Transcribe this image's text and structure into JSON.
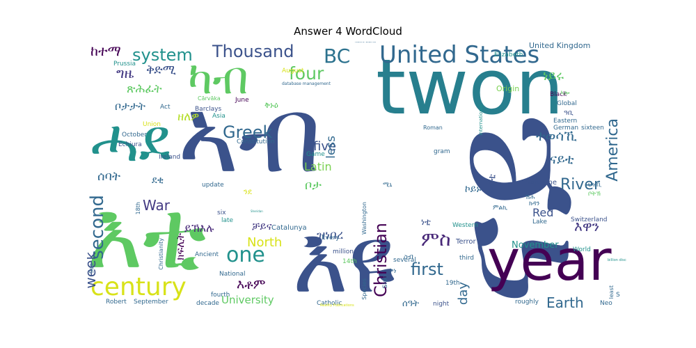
{
  "chart_data": {
    "type": "wordcloud",
    "title": "Answer 4 WordCloud",
    "words": [
      {
        "text": "twon",
        "weight": 100,
        "color": "#277f8e"
      },
      {
        "text": "ናይ",
        "weight": 100,
        "color": "#3b528b"
      },
      {
        "text": "እዩ",
        "weight": 85,
        "color": "#3b528b"
      },
      {
        "text": "ኣብ",
        "weight": 75,
        "color": "#3b528b"
      },
      {
        "text": "year",
        "weight": 60,
        "color": "#440154"
      },
      {
        "text": "እቲ",
        "weight": 80,
        "color": "#5ec962"
      },
      {
        "text": "ሓደ",
        "weight": 50,
        "color": "#21918c"
      },
      {
        "text": "ካብ",
        "weight": 50,
        "color": "#5ec962"
      },
      {
        "text": "century",
        "weight": 30,
        "color": "#d8e219"
      },
      {
        "text": "United States",
        "weight": 28,
        "color": "#31688e"
      },
      {
        "text": "second",
        "weight": 26,
        "color": "#31688e"
      },
      {
        "text": "Thousand",
        "weight": 24,
        "color": "#3b528b"
      },
      {
        "text": "one",
        "weight": 26,
        "color": "#21918c"
      },
      {
        "text": "four",
        "weight": 22,
        "color": "#5ec962"
      },
      {
        "text": "BC",
        "weight": 24,
        "color": "#2c728e"
      },
      {
        "text": "system",
        "weight": 20,
        "color": "#21918c"
      },
      {
        "text": "Greek",
        "weight": 20,
        "color": "#31688e"
      },
      {
        "text": "Christian",
        "weight": 20,
        "color": "#440154"
      },
      {
        "text": "America",
        "weight": 20,
        "color": "#31688e"
      },
      {
        "text": "River",
        "weight": 18,
        "color": "#31688e"
      },
      {
        "text": "first",
        "weight": 20,
        "color": "#31688e"
      },
      {
        "text": "Earth",
        "weight": 18,
        "color": "#31688e"
      },
      {
        "text": "week",
        "weight": 18,
        "color": "#3b528b"
      },
      {
        "text": "War",
        "weight": 18,
        "color": "#443a83"
      },
      {
        "text": "North",
        "weight": 16,
        "color": "#d8e219"
      },
      {
        "text": "University",
        "weight": 14,
        "color": "#5ec962"
      },
      {
        "text": "day",
        "weight": 16,
        "color": "#31688e"
      },
      {
        "text": "five",
        "weight": 16,
        "color": "#3b528b"
      },
      {
        "text": "less",
        "weight": 14,
        "color": "#31688e"
      },
      {
        "text": "Latin",
        "weight": 14,
        "color": "#7ad151"
      },
      {
        "text": "Red",
        "weight": 14,
        "color": "#3b528b"
      },
      {
        "text": "November",
        "weight": 11,
        "color": "#21918c"
      },
      {
        "text": "ዘለዎ",
        "weight": 14,
        "color": "#b5de2b"
      },
      {
        "text": "ምስ",
        "weight": 20,
        "color": "#482878"
      },
      {
        "text": "እዋን",
        "weight": 16,
        "color": "#443a83"
      },
      {
        "text": "ከተማ",
        "weight": 16,
        "color": "#440154"
      },
      {
        "text": "ግዜ",
        "weight": 16,
        "color": "#443a83"
      },
      {
        "text": "ቅድሚ",
        "weight": 16,
        "color": "#3b528b"
      },
      {
        "text": "ጽሕፈት",
        "weight": 14,
        "color": "#5ec962"
      },
      {
        "text": "ቦታታት",
        "weight": 14,
        "color": "#31688e"
      },
      {
        "text": "ሰባት",
        "weight": 16,
        "color": "#31688e"
      },
      {
        "text": "ነይሩ",
        "weight": 16,
        "color": "#5ec962"
      },
      {
        "text": "ተወሳኺ",
        "weight": 16,
        "color": "#31688e"
      },
      {
        "text": "ናይቲ",
        "weight": 16,
        "color": "#31688e"
      },
      {
        "text": "እቶም",
        "weight": 16,
        "color": "#440154"
      },
      {
        "text": "ዝነበረ",
        "weight": 14,
        "color": "#3b528b"
      },
      {
        "text": "ቻይና",
        "weight": 14,
        "color": "#443a83"
      },
      {
        "text": "ይኽእሉ",
        "weight": 14,
        "color": "#482878"
      },
      {
        "text": "ክፍሊት",
        "weight": 12,
        "color": "#440154"
      },
      {
        "text": "ደቂ",
        "weight": 12,
        "color": "#31688e"
      },
      {
        "text": "ቦታ",
        "weight": 14,
        "color": "#5ec962"
      },
      {
        "text": "ኮይኑ",
        "weight": 12,
        "color": "#31688e"
      },
      {
        "text": "ዝኾነ",
        "weight": 12,
        "color": "#3b528b"
      },
      {
        "text": "ኣብቲ",
        "weight": 12,
        "color": "#3b528b"
      },
      {
        "text": "ሰዓት",
        "weight": 12,
        "color": "#31688e"
      },
      {
        "text": "United Kingdom",
        "weight": 8,
        "color": "#31688e"
      },
      {
        "text": "Elizabeth",
        "weight": 8,
        "color": "#21918c"
      },
      {
        "text": "Origin",
        "weight": 8,
        "color": "#7ad151"
      },
      {
        "text": "Black",
        "weight": 7,
        "color": "#440154"
      },
      {
        "text": "Global",
        "weight": 7,
        "color": "#31688e"
      },
      {
        "text": "Eastern",
        "weight": 7,
        "color": "#31688e"
      },
      {
        "text": "German",
        "weight": 7,
        "color": "#31688e"
      },
      {
        "text": "sixteen",
        "weight": 7,
        "color": "#31688e"
      },
      {
        "text": "Supreme",
        "weight": 7,
        "color": "#3b528b"
      },
      {
        "text": "Switzerland",
        "weight": 7,
        "color": "#3b528b"
      },
      {
        "text": "Lake",
        "weight": 7,
        "color": "#31688e"
      },
      {
        "text": "World",
        "weight": 7,
        "color": "#21918c"
      },
      {
        "text": "Western",
        "weight": 7,
        "color": "#21918c"
      },
      {
        "text": "Terror",
        "weight": 8,
        "color": "#3b528b"
      },
      {
        "text": "third",
        "weight": 7,
        "color": "#31688e"
      },
      {
        "text": "roughly",
        "weight": 7,
        "color": "#31688e"
      },
      {
        "text": "Neo",
        "weight": 7,
        "color": "#31688e"
      },
      {
        "text": "least",
        "weight": 6,
        "color": "#31688e"
      },
      {
        "text": "billion discs",
        "weight": 4,
        "color": "#21918c"
      },
      {
        "text": "Prussia",
        "weight": 7,
        "color": "#21918c"
      },
      {
        "text": "Cārvāka",
        "weight": 7,
        "color": "#5ec962"
      },
      {
        "text": "Barclays",
        "weight": 7,
        "color": "#3b528b"
      },
      {
        "text": "Act",
        "weight": 7,
        "color": "#31688e"
      },
      {
        "text": "Union",
        "weight": 7,
        "color": "#d8e219"
      },
      {
        "text": "October",
        "weight": 7,
        "color": "#31688e"
      },
      {
        "text": "Echiura",
        "weight": 7,
        "color": "#3b528b"
      },
      {
        "text": "Ireland",
        "weight": 7,
        "color": "#3b528b"
      },
      {
        "text": "update",
        "weight": 7,
        "color": "#31688e"
      },
      {
        "text": "six",
        "weight": 7,
        "color": "#3b528b"
      },
      {
        "text": "late",
        "weight": 7,
        "color": "#21918c"
      },
      {
        "text": "Christianity",
        "weight": 6,
        "color": "#31688e"
      },
      {
        "text": "Ancient",
        "weight": 7,
        "color": "#31688e"
      },
      {
        "text": "National",
        "weight": 7,
        "color": "#31688e"
      },
      {
        "text": "fourth",
        "weight": 7,
        "color": "#31688e"
      },
      {
        "text": "decade",
        "weight": 7,
        "color": "#31688e"
      },
      {
        "text": "Robert",
        "weight": 7,
        "color": "#31688e"
      },
      {
        "text": "September",
        "weight": 7,
        "color": "#31688e"
      },
      {
        "text": "Sea",
        "weight": 6,
        "color": "#31688e"
      },
      {
        "text": "18th",
        "weight": 6,
        "color": "#31688e"
      },
      {
        "text": "Constitution",
        "weight": 7,
        "color": "#31688e"
      },
      {
        "text": "Game",
        "weight": 7,
        "color": "#21918c"
      },
      {
        "text": "Washington",
        "weight": 6,
        "color": "#31688e"
      },
      {
        "text": "gram",
        "weight": 7,
        "color": "#31688e"
      },
      {
        "text": "Roman",
        "weight": 6,
        "color": "#31688e"
      },
      {
        "text": "international",
        "weight": 5,
        "color": "#21918c"
      },
      {
        "text": "June",
        "weight": 7,
        "color": "#440154"
      },
      {
        "text": "Asia",
        "weight": 7,
        "color": "#21918c"
      },
      {
        "text": "August",
        "weight": 7,
        "color": "#d8e219"
      },
      {
        "text": "database management",
        "weight": 5,
        "color": "#31688e"
      },
      {
        "text": "Notre Dame",
        "weight": 4,
        "color": "#31688e"
      },
      {
        "text": "Catalunya",
        "weight": 7,
        "color": "#31688e"
      },
      {
        "text": "Every",
        "weight": 7,
        "color": "#31688e"
      },
      {
        "text": "million",
        "weight": 7,
        "color": "#3b528b"
      },
      {
        "text": "14th",
        "weight": 7,
        "color": "#5ec962"
      },
      {
        "text": "several",
        "weight": 7,
        "color": "#31688e"
      },
      {
        "text": "19th",
        "weight": 7,
        "color": "#31688e"
      },
      {
        "text": "night",
        "weight": 7,
        "color": "#3b528b"
      },
      {
        "text": "craps",
        "weight": 7,
        "color": "#21918c"
      },
      {
        "text": "Species",
        "weight": 6,
        "color": "#31688e"
      },
      {
        "text": "Side",
        "weight": 7,
        "color": "#31688e"
      },
      {
        "text": "Catholic",
        "weight": 7,
        "color": "#31688e"
      },
      {
        "text": "Reality Publications",
        "weight": 4,
        "color": "#d8e219"
      },
      {
        "text": "Sheridan",
        "weight": 3,
        "color": "#21918c"
      },
      {
        "text": "S",
        "weight": 7,
        "color": "#31688e"
      },
      {
        "text": "ቅኑዕ",
        "weight": 10,
        "color": "#5ec962"
      },
      {
        "text": "ንደ",
        "weight": 9,
        "color": "#d8e219"
      },
      {
        "text": "ሚኒ",
        "weight": 8,
        "color": "#31688e"
      },
      {
        "text": "ስብ",
        "weight": 9,
        "color": "#31688e"
      },
      {
        "text": "ኮነ",
        "weight": 9,
        "color": "#31688e"
      },
      {
        "text": "ነቲ",
        "weight": 10,
        "color": "#3b528b"
      },
      {
        "text": "ምልኪ",
        "weight": 8,
        "color": "#31688e"
      },
      {
        "text": "ሽሕ",
        "weight": 8,
        "color": "#31688e"
      },
      {
        "text": "ክዳን",
        "weight": 8,
        "color": "#31688e"
      },
      {
        "text": "ኣሎ",
        "weight": 8,
        "color": "#5ec962"
      },
      {
        "text": "ዓቢ",
        "weight": 9,
        "color": "#3b528b"
      },
      {
        "text": "ህዝቢ",
        "weight": 8,
        "color": "#31688e"
      },
      {
        "text": "ቦትኽ",
        "weight": 8,
        "color": "#5ec962"
      }
    ]
  }
}
